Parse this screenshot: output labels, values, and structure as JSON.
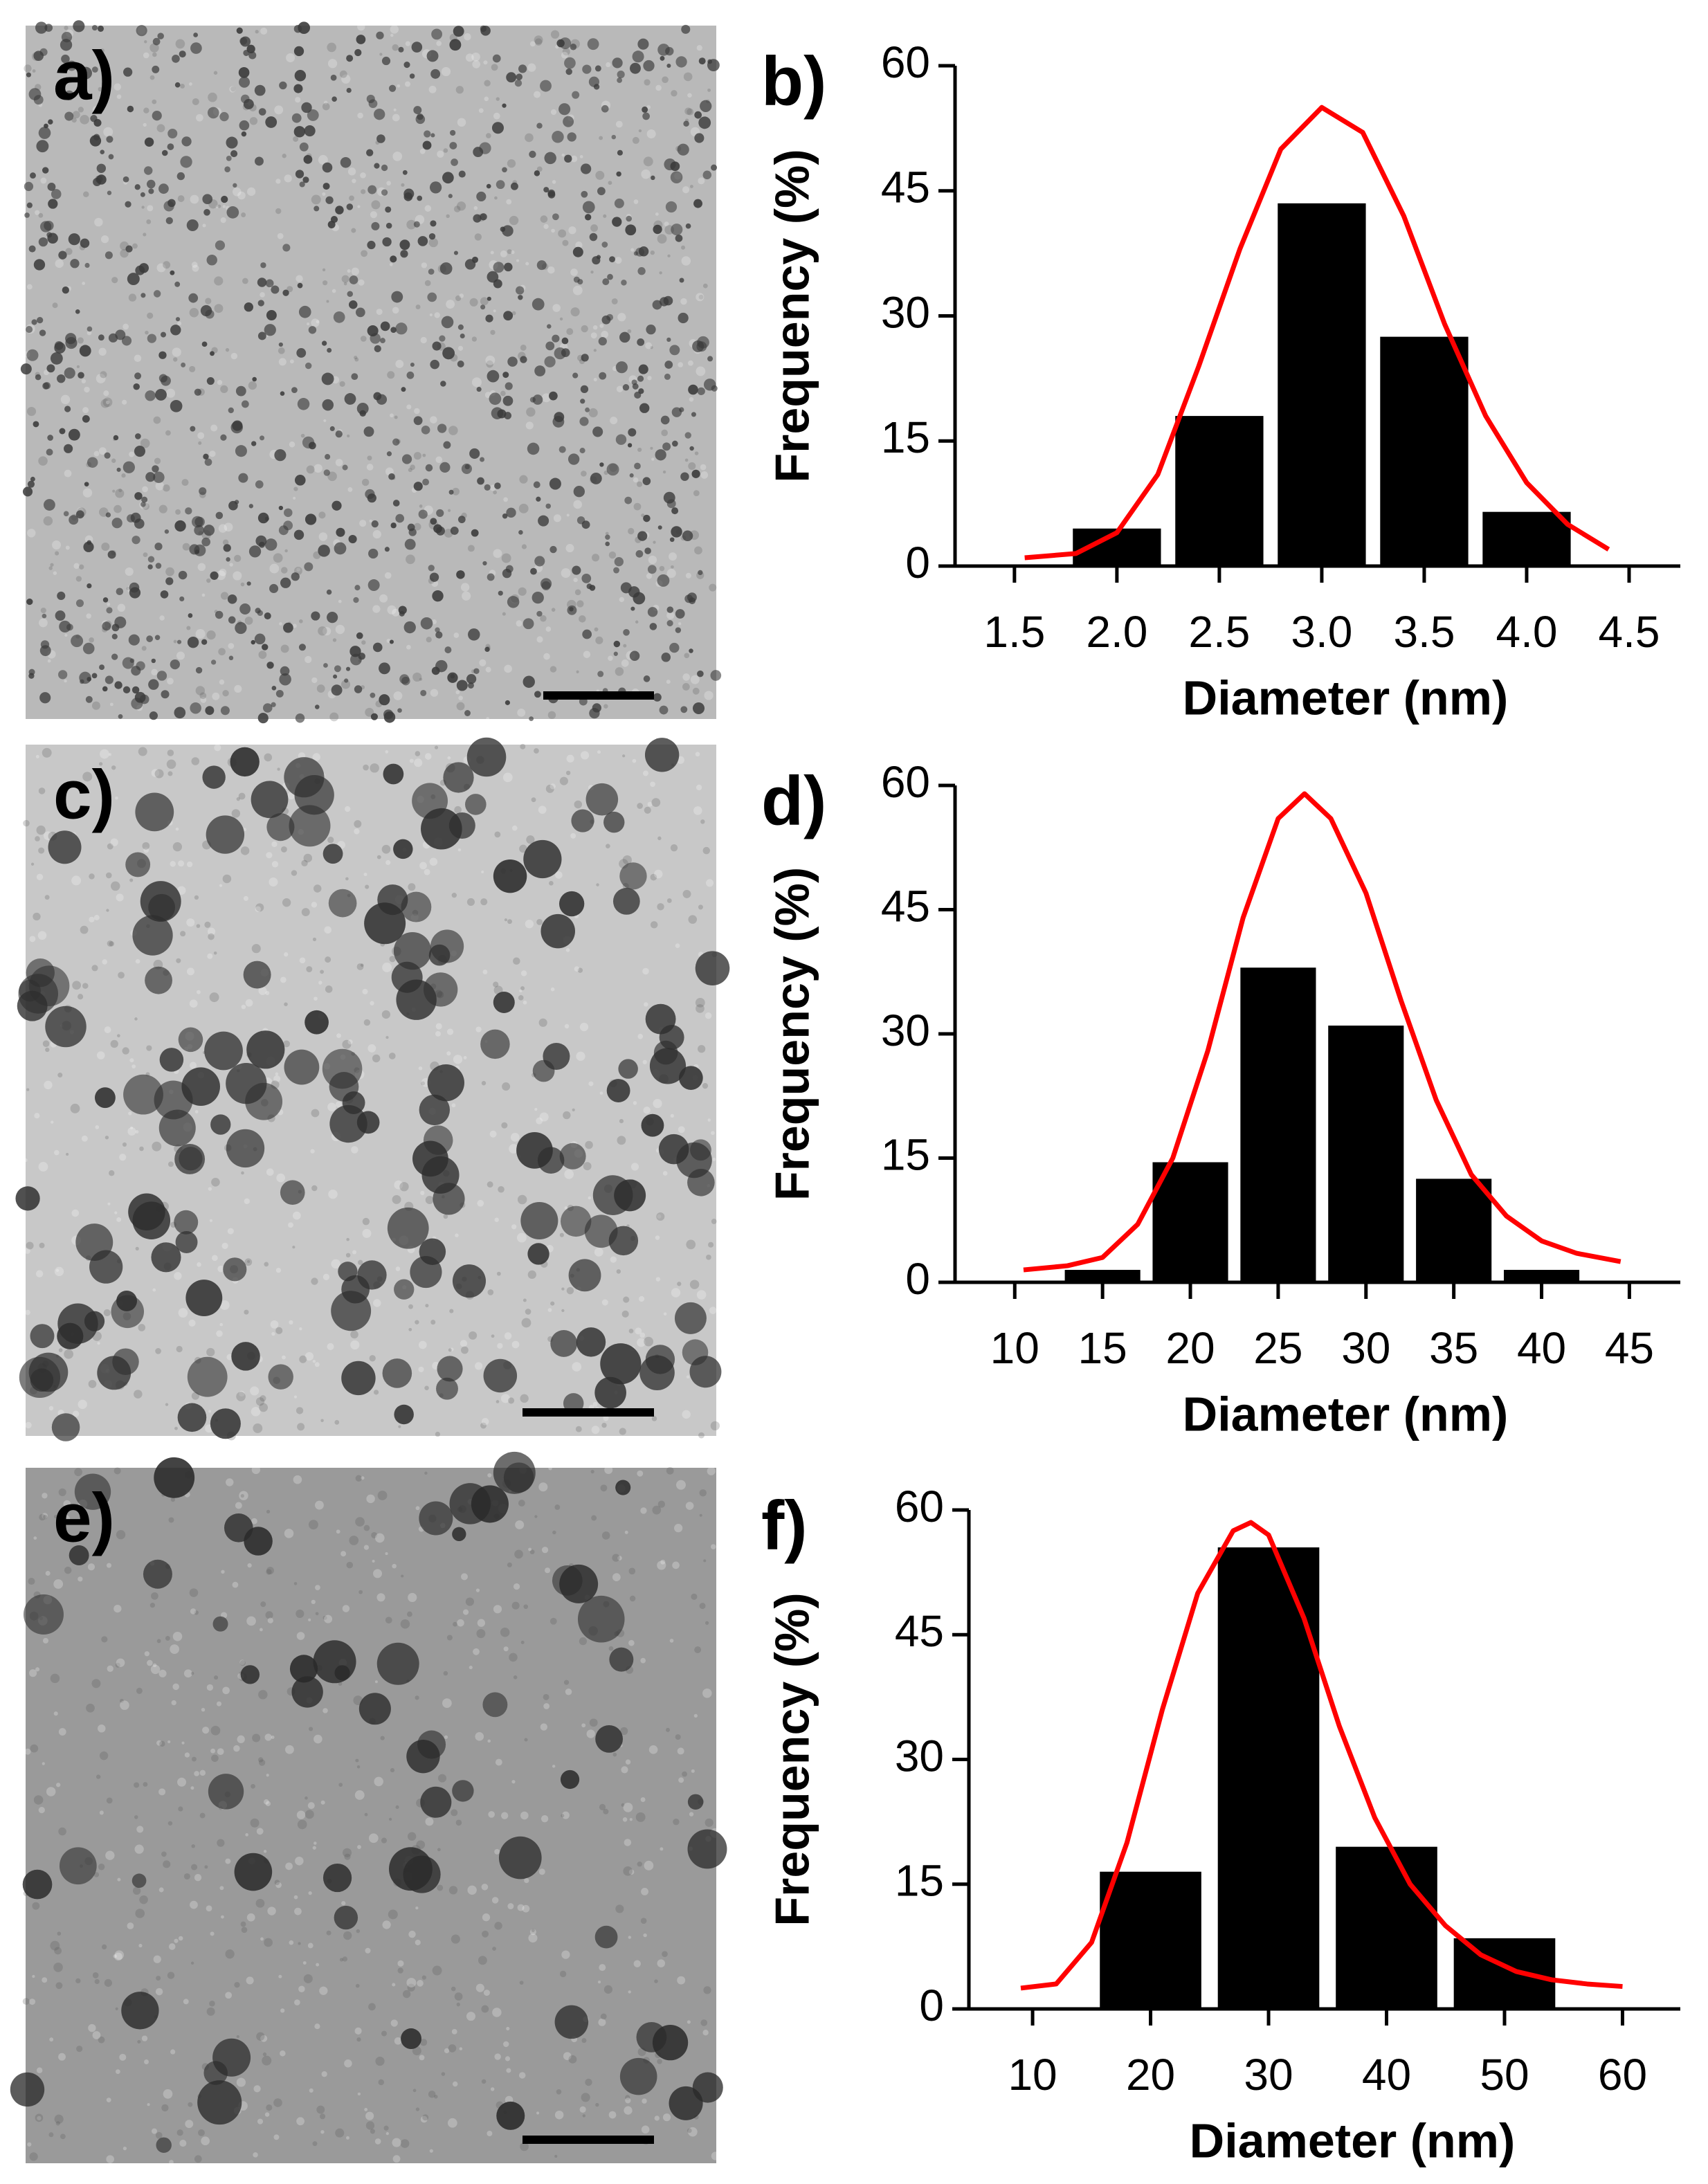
{
  "images": [
    {
      "label": "a)"
    },
    {
      "label": "c)"
    },
    {
      "label": "e)"
    }
  ],
  "chart_data": [
    {
      "type": "bar",
      "panel_label": "b)",
      "xlabel": "Diameter (nm)",
      "ylabel": "Frequency (%)",
      "x": [
        2.0,
        2.5,
        3.0,
        3.5,
        4.0
      ],
      "values": [
        4.5,
        18,
        43.5,
        27.5,
        6.5
      ],
      "color": "#000000",
      "fit": {
        "color": "#ff0000",
        "x": [
          1.55,
          1.8,
          2.0,
          2.2,
          2.4,
          2.6,
          2.8,
          3.0,
          3.2,
          3.4,
          3.6,
          3.8,
          4.0,
          4.2,
          4.4
        ],
        "values": [
          1,
          1.5,
          4,
          11,
          24,
          38,
          50,
          55,
          52,
          42,
          29,
          18,
          10,
          5,
          2
        ]
      },
      "xlim": [
        1.21,
        4.75
      ],
      "ylim": [
        0,
        60
      ],
      "xticks": [
        1.5,
        {
          "value": 2,
          "label": "2.0"
        },
        2.5,
        {
          "value": 3,
          "label": "3.0"
        },
        3.5,
        {
          "value": 4,
          "label": "4.0"
        },
        4.5
      ],
      "yticks": [
        0,
        15,
        30,
        45,
        60
      ]
    },
    {
      "type": "bar",
      "panel_label": "d)",
      "xlabel": "Diameter (nm)",
      "ylabel": "Frequency (%)",
      "x": [
        15,
        20,
        25,
        30,
        35,
        40
      ],
      "values": [
        1.5,
        14.5,
        38,
        31,
        12.5,
        1.5
      ],
      "color": "#000000",
      "fit": {
        "color": "#ff0000",
        "x": [
          10.5,
          13,
          15,
          17,
          19,
          21,
          23,
          25,
          26.5,
          28,
          30,
          32,
          34,
          36,
          38,
          40,
          42,
          44.5
        ],
        "values": [
          1.5,
          2,
          3,
          7,
          15,
          28,
          44,
          56,
          59,
          56,
          47,
          34,
          22,
          13,
          8,
          5,
          3.5,
          2.5
        ]
      },
      "xlim": [
        6.6,
        47.9
      ],
      "ylim": [
        0,
        60
      ],
      "xticks": [
        10,
        15,
        20,
        25,
        30,
        35,
        40,
        45
      ],
      "yticks": [
        0,
        15,
        30,
        45,
        60
      ]
    },
    {
      "type": "bar",
      "panel_label": "f)",
      "xlabel": "Diameter (nm)",
      "ylabel": "Frequency (%)",
      "x": [
        20,
        30,
        40,
        50
      ],
      "values": [
        16.5,
        55.5,
        19.5,
        8.5
      ],
      "color": "#000000",
      "fit": {
        "color": "#ff0000",
        "x": [
          9,
          12,
          15,
          18,
          21,
          24,
          27,
          28.5,
          30,
          33,
          36,
          39,
          42,
          45,
          48,
          51,
          54,
          57,
          60
        ],
        "values": [
          2.5,
          3,
          8,
          20,
          36,
          50,
          57.5,
          58.5,
          57,
          47,
          34,
          23,
          15,
          10,
          6.5,
          4.5,
          3.5,
          3,
          2.7
        ]
      },
      "xlim": [
        4.6,
        64.9
      ],
      "ylim": [
        0,
        60
      ],
      "xticks": [
        10,
        20,
        30,
        40,
        50,
        60
      ],
      "yticks": [
        0,
        15,
        30,
        45,
        60
      ]
    }
  ]
}
